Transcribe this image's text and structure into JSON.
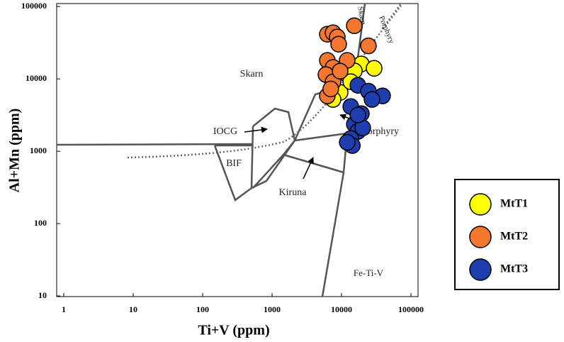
{
  "chart_data": {
    "type": "scatter",
    "x_label": "Ti+V (ppm)",
    "y_label": "Al+Mn (ppm)",
    "xscale": "log",
    "yscale": "log",
    "grid": false,
    "legend": "outside-right",
    "xlim": [
      0.79,
      126500
    ],
    "ylim": [
      9.8,
      110000
    ],
    "xticks": [
      1,
      10,
      100,
      1000,
      10000,
      100000
    ],
    "yticks": [
      10,
      100,
      1000,
      10000,
      100000
    ],
    "annotations": [
      "Skarn",
      "IOCG",
      "BIF",
      "Kiruna",
      "Porphyry",
      "Fe-Ti-V",
      "Skarn",
      "Porphyry"
    ],
    "series": [
      {
        "name": "MtT1",
        "color": "#ffff00",
        "x": [
          19300,
          29500,
          12100,
          15300,
          9550,
          7550,
          13600
        ],
        "values": [
          16100,
          14000,
          11500,
          12900,
          6510,
          5200,
          9140
        ]
      },
      {
        "name": "MtT2",
        "color": "#f4772f",
        "x": [
          6250,
          7550,
          8690,
          15270,
          9100,
          24400,
          6250,
          7550,
          5970,
          7550,
          6250,
          7000,
          12070,
          9550
        ],
        "values": [
          41500,
          43400,
          37900,
          54300,
          30200,
          28600,
          18000,
          14400,
          11460,
          9100,
          5820,
          7260,
          18000,
          12800
        ]
      },
      {
        "name": "MtT3",
        "color": "#1f3fb0",
        "x": [
          17200,
          24400,
          39000,
          27500,
          13600,
          19300,
          15300,
          17200,
          13600,
          14300,
          20200,
          17200,
          12100
        ],
        "values": [
          8160,
          6760,
          5820,
          5200,
          4150,
          3310,
          2360,
          1880,
          1500,
          1200,
          2100,
          3170,
          1330
        ]
      }
    ]
  }
}
